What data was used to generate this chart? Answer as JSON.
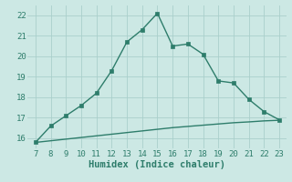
{
  "xlabel": "Humidex (Indice chaleur)",
  "x_main": [
    7,
    8,
    9,
    10,
    11,
    12,
    13,
    14,
    15,
    16,
    17,
    18,
    19,
    20,
    21,
    22,
    23
  ],
  "y_main": [
    15.8,
    16.6,
    17.1,
    17.6,
    18.2,
    19.3,
    20.7,
    21.3,
    22.1,
    20.5,
    20.6,
    20.1,
    18.8,
    18.7,
    17.9,
    17.3,
    16.9
  ],
  "x_line2": [
    7,
    8,
    9,
    10,
    11,
    12,
    13,
    14,
    15,
    16,
    17,
    18,
    19,
    20,
    21,
    22,
    23
  ],
  "y_line2": [
    15.8,
    15.88,
    15.96,
    16.04,
    16.12,
    16.2,
    16.28,
    16.36,
    16.44,
    16.52,
    16.58,
    16.64,
    16.7,
    16.76,
    16.8,
    16.85,
    16.88
  ],
  "line_color": "#2e7d6b",
  "bg_color": "#cce8e4",
  "grid_color": "#aacfcb",
  "text_color": "#2e7d6b",
  "xlim": [
    6.5,
    23.5
  ],
  "ylim": [
    15.5,
    22.5
  ],
  "xticks": [
    7,
    8,
    9,
    10,
    11,
    12,
    13,
    14,
    15,
    16,
    17,
    18,
    19,
    20,
    21,
    22,
    23
  ],
  "yticks": [
    16,
    17,
    18,
    19,
    20,
    21,
    22
  ],
  "marker_size": 2.5,
  "linewidth": 1.0,
  "xlabel_fontsize": 7.5,
  "tick_fontsize": 6.5
}
